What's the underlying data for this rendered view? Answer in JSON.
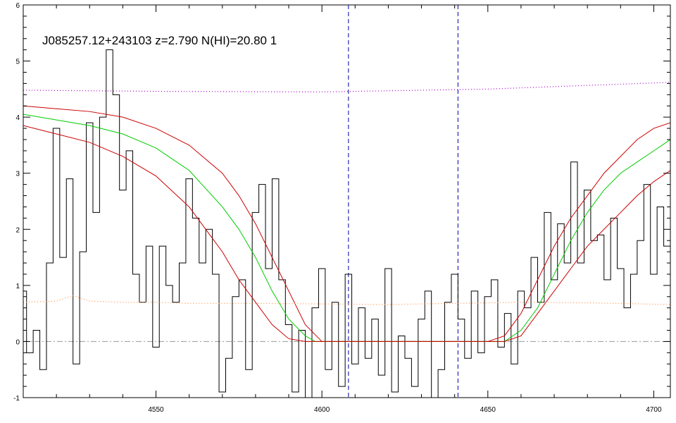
{
  "chart_data": {
    "type": "line",
    "title": "J085257.12+243103 z=2.790 N(HI)=20.80 1",
    "xlabel": "",
    "ylabel": "",
    "xlim": [
      4510,
      4705
    ],
    "ylim": [
      -1,
      6
    ],
    "x_ticks": [
      4550,
      4600,
      4650,
      4700
    ],
    "y_ticks": [
      -1,
      0,
      1,
      2,
      3,
      4,
      5,
      6
    ],
    "grid": false,
    "legend": "none",
    "vlines": [
      4608,
      4641
    ],
    "zero_line": 0,
    "colors": {
      "flux": "#000000",
      "fit_best": "#00cc00",
      "fit_bounds": "#cc0000",
      "continuum": "#b000d0",
      "error": "#ff8c40",
      "vline": "#0000aa",
      "zero": "#999999"
    },
    "series": [
      {
        "key": "flux",
        "style": "step",
        "x": [
          4510,
          4512,
          4514,
          4516,
          4518,
          4520,
          4522,
          4524,
          4526,
          4528,
          4530,
          4532,
          4534,
          4536,
          4538,
          4540,
          4542,
          4544,
          4546,
          4548,
          4550,
          4552,
          4554,
          4556,
          4558,
          4560,
          4562,
          4564,
          4566,
          4568,
          4570,
          4572,
          4574,
          4576,
          4578,
          4580,
          4582,
          4584,
          4586,
          4588,
          4590,
          4592,
          4594,
          4596,
          4598,
          4600,
          4602,
          4604,
          4606,
          4608,
          4610,
          4612,
          4614,
          4616,
          4618,
          4620,
          4622,
          4624,
          4626,
          4628,
          4630,
          4632,
          4634,
          4636,
          4638,
          4640,
          4642,
          4644,
          4646,
          4648,
          4650,
          4652,
          4654,
          4656,
          4658,
          4660,
          4662,
          4664,
          4666,
          4668,
          4670,
          4672,
          4674,
          4676,
          4678,
          4680,
          4682,
          4684,
          4686,
          4688,
          4690,
          4692,
          4694,
          4696,
          4698,
          4700,
          4702,
          4704
        ],
        "y": [
          0.9,
          -0.2,
          0.2,
          -0.5,
          1.4,
          3.8,
          1.5,
          2.9,
          -0.4,
          1.6,
          3.9,
          2.3,
          4.0,
          5.2,
          4.4,
          2.7,
          3.4,
          1.2,
          0.7,
          1.7,
          -0.1,
          1.7,
          1.0,
          0.7,
          1.4,
          2.9,
          2.2,
          1.4,
          2.0,
          1.2,
          -0.9,
          -0.3,
          0.8,
          1.1,
          -0.5,
          2.3,
          2.8,
          1.3,
          2.9,
          1.1,
          0.3,
          -0.9,
          0.2,
          -1.0,
          0.6,
          1.3,
          -0.5,
          0.7,
          -0.8,
          1.2,
          -0.4,
          0.6,
          -0.3,
          0.4,
          -0.6,
          1.3,
          -0.9,
          0.1,
          -0.3,
          -0.8,
          0.4,
          0.9,
          -1.0,
          -0.5,
          0.7,
          1.2,
          0.4,
          -0.3,
          0.9,
          -0.2,
          0.8,
          1.1,
          -0.1,
          0.5,
          -0.4,
          0.9,
          0.6,
          1.5,
          0.7,
          2.3,
          1.1,
          2.1,
          1.4,
          3.2,
          1.4,
          2.7,
          1.8,
          1.9,
          1.1,
          2.2,
          1.3,
          0.6,
          1.2,
          1.8,
          2.8,
          1.2,
          2.4,
          1.7
        ]
      },
      {
        "key": "fit_upper",
        "style": "line",
        "x": [
          4510,
          4520,
          4530,
          4540,
          4550,
          4560,
          4570,
          4575,
          4580,
          4585,
          4590,
          4595,
          4600,
          4605,
          4640,
          4650,
          4655,
          4660,
          4665,
          4670,
          4675,
          4680,
          4685,
          4690,
          4695,
          4700,
          4705
        ],
        "y": [
          4.2,
          4.15,
          4.1,
          4.0,
          3.8,
          3.5,
          3.0,
          2.6,
          2.1,
          1.5,
          0.9,
          0.3,
          0.0,
          0.0,
          0.0,
          0.0,
          0.1,
          0.5,
          1.1,
          1.7,
          2.2,
          2.6,
          3.0,
          3.3,
          3.6,
          3.8,
          3.9
        ]
      },
      {
        "key": "fit_best",
        "style": "line",
        "x": [
          4510,
          4520,
          4530,
          4540,
          4550,
          4560,
          4570,
          4575,
          4580,
          4585,
          4590,
          4595,
          4598,
          4602,
          4650,
          4655,
          4660,
          4665,
          4670,
          4675,
          4680,
          4685,
          4690,
          4695,
          4700,
          4705
        ],
        "y": [
          4.05,
          3.95,
          3.85,
          3.7,
          3.45,
          3.05,
          2.4,
          2.0,
          1.5,
          0.9,
          0.4,
          0.1,
          0.0,
          0.0,
          0.0,
          0.0,
          0.2,
          0.6,
          1.2,
          1.8,
          2.3,
          2.7,
          3.0,
          3.2,
          3.4,
          3.6
        ]
      },
      {
        "key": "fit_lower",
        "style": "line",
        "x": [
          4510,
          4520,
          4530,
          4540,
          4550,
          4560,
          4565,
          4570,
          4575,
          4580,
          4585,
          4590,
          4595,
          4600,
          4655,
          4660,
          4665,
          4670,
          4675,
          4680,
          4685,
          4690,
          4695,
          4700,
          4705
        ],
        "y": [
          3.85,
          3.7,
          3.55,
          3.3,
          2.95,
          2.4,
          2.0,
          1.6,
          1.1,
          0.7,
          0.3,
          0.05,
          0.0,
          0.0,
          0.0,
          0.1,
          0.5,
          0.9,
          1.3,
          1.7,
          2.0,
          2.3,
          2.6,
          2.85,
          3.05
        ]
      },
      {
        "key": "continuum",
        "style": "dotted",
        "x": [
          4510,
          4550,
          4600,
          4650,
          4705
        ],
        "y": [
          4.48,
          4.46,
          4.45,
          4.5,
          4.62
        ]
      },
      {
        "key": "error",
        "style": "dotted",
        "x": [
          4510,
          4520,
          4525,
          4530,
          4540,
          4550,
          4560,
          4580,
          4600,
          4620,
          4640,
          4660,
          4680,
          4705
        ],
        "y": [
          0.7,
          0.72,
          0.82,
          0.72,
          0.7,
          0.7,
          0.68,
          0.68,
          0.67,
          0.66,
          0.68,
          0.7,
          0.69,
          0.66
        ]
      }
    ]
  }
}
